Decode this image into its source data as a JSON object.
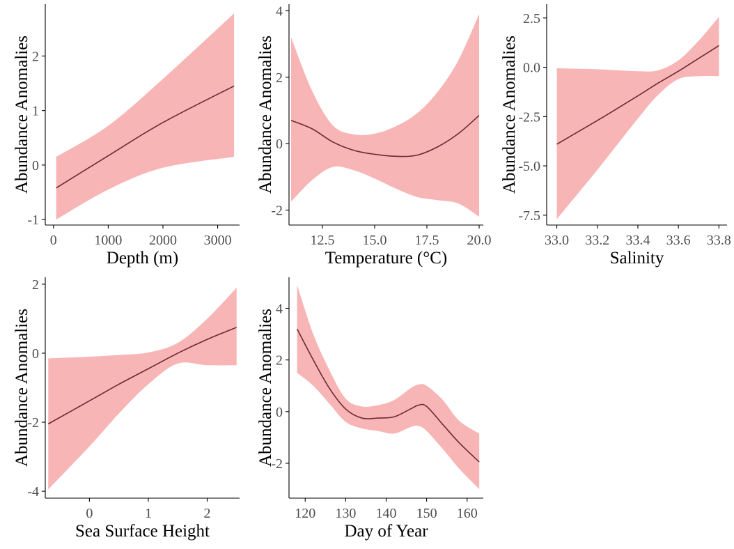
{
  "colors": {
    "band": "#f8b5b5",
    "line": "#6b2a2f",
    "axis": "#000000",
    "tick_text": "#4d4d4d"
  },
  "chart_data": [
    {
      "type": "line",
      "xlabel": "Depth (m)",
      "ylabel": "Abundance Anomalies",
      "xlim": [
        -150,
        3400
      ],
      "ylim": [
        -1.1,
        2.95
      ],
      "xticks": [
        0,
        1000,
        2000,
        3000
      ],
      "xtick_labels": [
        "0",
        "1000",
        "2000",
        "3000"
      ],
      "yticks": [
        -1,
        0,
        1,
        2
      ],
      "ytick_labels": [
        "-1",
        "0",
        "1",
        "2"
      ],
      "series": [
        {
          "x": [
            50,
            1000,
            2000,
            3300
          ],
          "y": [
            -0.42,
            0.17,
            0.78,
            1.45
          ],
          "lower": [
            -1.0,
            -0.45,
            -0.05,
            0.15
          ],
          "upper": [
            0.15,
            0.72,
            1.58,
            2.78
          ]
        }
      ]
    },
    {
      "type": "line",
      "xlabel": "Temperature (°C)",
      "ylabel": "Abundance Anomalies",
      "xlim": [
        10.9,
        20.2
      ],
      "ylim": [
        -2.45,
        4.2
      ],
      "xticks": [
        12.5,
        15.0,
        17.5,
        20.0
      ],
      "xtick_labels": [
        "12.5",
        "15.0",
        "17.5",
        "20.0"
      ],
      "yticks": [
        -2,
        0,
        2,
        4
      ],
      "ytick_labels": [
        "-2",
        "0",
        "2",
        "4"
      ],
      "series": [
        {
          "x": [
            11.0,
            12.0,
            13.0,
            14.0,
            15.0,
            16.0,
            17.0,
            18.0,
            19.0,
            20.0
          ],
          "y": [
            0.7,
            0.45,
            0.05,
            -0.2,
            -0.32,
            -0.38,
            -0.35,
            -0.1,
            0.3,
            0.85
          ],
          "lower": [
            -1.75,
            -1.1,
            -0.7,
            -0.8,
            -1.05,
            -1.35,
            -1.6,
            -1.7,
            -1.8,
            -2.2
          ],
          "upper": [
            3.2,
            1.6,
            0.55,
            0.28,
            0.3,
            0.52,
            0.9,
            1.55,
            2.5,
            3.9
          ]
        }
      ]
    },
    {
      "type": "line",
      "xlabel": "Salinity",
      "ylabel": "Abundance Anomalies",
      "xlim": [
        32.95,
        33.84
      ],
      "ylim": [
        -8.0,
        3.2
      ],
      "xticks": [
        33.0,
        33.2,
        33.4,
        33.6,
        33.8
      ],
      "xtick_labels": [
        "33.0",
        "33.2",
        "33.4",
        "33.6",
        "33.8"
      ],
      "yticks": [
        -7.5,
        -5.0,
        -2.5,
        0.0,
        2.5
      ],
      "ytick_labels": [
        "-7.5",
        "-5.0",
        "-2.5",
        "0.0",
        "2.5"
      ],
      "series": [
        {
          "x": [
            33.0,
            33.2,
            33.4,
            33.5,
            33.6,
            33.7,
            33.8
          ],
          "y": [
            -3.9,
            -2.7,
            -1.45,
            -0.8,
            -0.2,
            0.45,
            1.1
          ],
          "lower": [
            -7.7,
            -5.2,
            -2.6,
            -1.4,
            -0.6,
            -0.45,
            -0.45
          ],
          "upper": [
            -0.05,
            -0.1,
            -0.2,
            -0.15,
            0.35,
            1.35,
            2.55
          ]
        }
      ]
    },
    {
      "type": "line",
      "xlabel": "Sea Surface Height",
      "ylabel": "Abundance Anomalies",
      "xlim": [
        -0.75,
        2.55
      ],
      "ylim": [
        -4.2,
        2.2
      ],
      "xticks": [
        0,
        1,
        2
      ],
      "xtick_labels": [
        "0",
        "1",
        "2"
      ],
      "yticks": [
        -4,
        -2,
        0,
        2
      ],
      "ytick_labels": [
        "-4",
        "-2",
        "0",
        "2"
      ],
      "series": [
        {
          "x": [
            -0.7,
            0.0,
            0.5,
            1.0,
            1.5,
            2.0,
            2.5
          ],
          "y": [
            -2.05,
            -1.38,
            -0.9,
            -0.45,
            0.0,
            0.4,
            0.75
          ],
          "lower": [
            -3.95,
            -2.7,
            -1.75,
            -0.9,
            -0.3,
            -0.35,
            -0.35
          ],
          "upper": [
            -0.15,
            -0.1,
            -0.05,
            0.02,
            0.3,
            1.0,
            1.9
          ]
        }
      ]
    },
    {
      "type": "line",
      "xlabel": "Day of Year",
      "ylabel": "Abundance Anomalies",
      "xlim": [
        116,
        164
      ],
      "ylim": [
        -3.35,
        5.2
      ],
      "xticks": [
        120,
        130,
        140,
        150,
        160
      ],
      "xtick_labels": [
        "120",
        "130",
        "140",
        "150",
        "160"
      ],
      "yticks": [
        -2,
        0,
        2,
        4
      ],
      "ytick_labels": [
        "-2",
        "0",
        "2",
        "4"
      ],
      "series": [
        {
          "x": [
            118,
            122,
            126,
            130,
            134,
            138,
            142,
            146,
            148,
            150,
            154,
            158,
            163
          ],
          "y": [
            3.2,
            2.0,
            0.9,
            0.1,
            -0.25,
            -0.25,
            -0.2,
            0.1,
            0.25,
            0.2,
            -0.5,
            -1.2,
            -1.95
          ],
          "lower": [
            1.5,
            1.0,
            0.3,
            -0.4,
            -0.65,
            -0.75,
            -0.85,
            -0.6,
            -0.55,
            -0.75,
            -1.45,
            -2.2,
            -3.0
          ],
          "upper": [
            4.9,
            3.0,
            1.6,
            0.5,
            0.2,
            0.25,
            0.45,
            0.9,
            1.05,
            1.0,
            0.45,
            -0.35,
            -0.85
          ]
        }
      ]
    }
  ]
}
